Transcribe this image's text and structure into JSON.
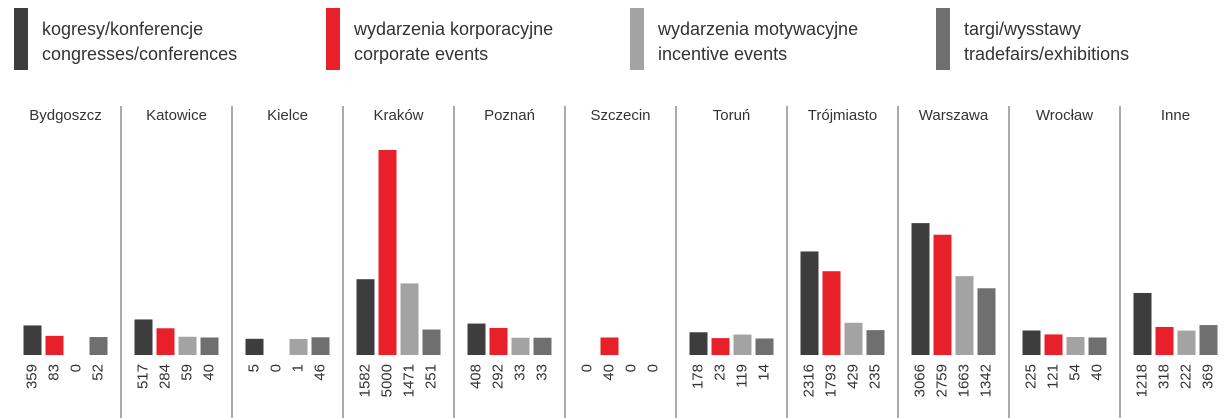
{
  "chart_data": {
    "type": "bar",
    "categories": [
      "Bydgoszcz",
      "Katowice",
      "Kielce",
      "Kraków",
      "Poznań",
      "Szczecin",
      "Toruń",
      "Trójmiasto",
      "Warszawa",
      "Wrocław",
      "Inne"
    ],
    "series": [
      {
        "name": "kogresy/konferencje",
        "name_en": "congresses/conferences",
        "color": "#3d3d3d",
        "values": [
          359,
          517,
          5,
          1582,
          408,
          0,
          178,
          2316,
          3066,
          225,
          1218
        ]
      },
      {
        "name": "wydarzenia korporacyjne",
        "name_en": "corporate events",
        "color": "#e8202a",
        "values": [
          83,
          284,
          0,
          5000,
          292,
          40,
          23,
          1793,
          2759,
          121,
          318
        ]
      },
      {
        "name": "wydarzenia motywacyjne",
        "name_en": "incentive events",
        "color": "#a3a3a3",
        "values": [
          0,
          59,
          1,
          1471,
          33,
          0,
          119,
          429,
          1663,
          54,
          222
        ]
      },
      {
        "name": "targi/wysstawy",
        "name_en": "tradefairs/exhibitions",
        "color": "#6f6f6f",
        "values": [
          52,
          40,
          46,
          251,
          33,
          0,
          14,
          235,
          1342,
          40,
          369
        ]
      }
    ]
  }
}
